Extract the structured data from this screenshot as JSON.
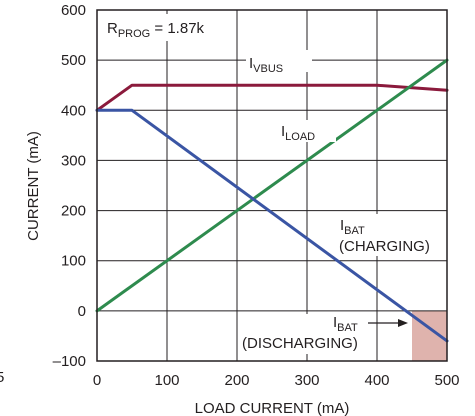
{
  "chart_data": {
    "type": "line",
    "xlabel": "LOAD CURRENT (mA)",
    "ylabel": "CURRENT (mA)",
    "xlim": [
      0,
      500
    ],
    "ylim": [
      -100,
      600
    ],
    "x_ticks": [
      "0",
      "100",
      "200",
      "300",
      "400",
      "500"
    ],
    "y_ticks": [
      "–100",
      "0",
      "100",
      "200",
      "300",
      "400",
      "500",
      "600"
    ],
    "grid": true,
    "legend_box": {
      "main": "R",
      "sub": "PROG",
      "rest": " = 1.87k"
    },
    "series": [
      {
        "name": "I_VBUS",
        "color": "#8b1a3c",
        "x": [
          0,
          50,
          400,
          500
        ],
        "y": [
          400,
          450,
          450,
          440
        ]
      },
      {
        "name": "I_LOAD",
        "color": "#2e8b4e",
        "x": [
          0,
          500
        ],
        "y": [
          0,
          500
        ]
      },
      {
        "name": "I_BAT",
        "color": "#3a55a4",
        "x": [
          0,
          50,
          500
        ],
        "y": [
          400,
          400,
          -60
        ]
      }
    ],
    "discharge_region": {
      "x": [
        450,
        500
      ],
      "y": [
        -100,
        0
      ],
      "color": "#dfb3ad"
    },
    "annotations": [
      {
        "id": "vbus",
        "main": "I",
        "sub": "VBUS"
      },
      {
        "id": "load",
        "main": "I",
        "sub": "LOAD"
      },
      {
        "id": "bat_charging",
        "main": "I",
        "sub": "BAT",
        "line2": "(CHARGING)"
      },
      {
        "id": "bat_discharging",
        "main": "I",
        "sub": "BAT",
        "line2": "(DISCHARGING)"
      }
    ],
    "side_fragment": "5"
  }
}
